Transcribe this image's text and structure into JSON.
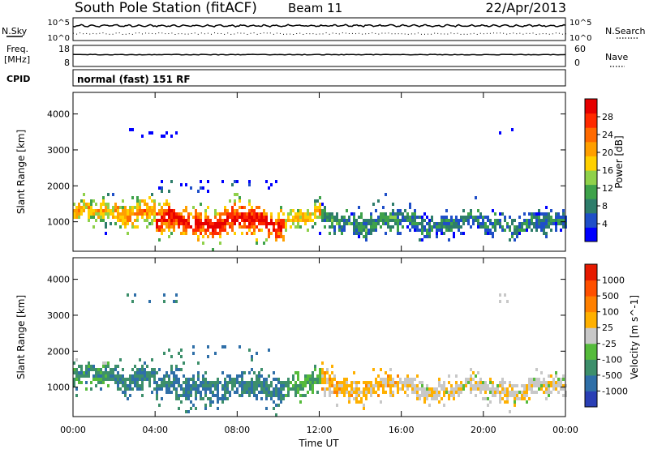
{
  "header": {
    "title": "South Pole Station (fitACF)",
    "beam": "Beam 11",
    "date": "22/Apr/2013",
    "cpid_label": "CPID",
    "mode_text": "normal (fast) 151 RF"
  },
  "small_panels": {
    "nsky_label": "N.Sky",
    "nsearch_label": "N.Search",
    "nsky_ticks": [
      "10^5",
      "10^0"
    ],
    "nsearch_ticks": [
      "10^5",
      "10^0"
    ],
    "freq_label": "Freq.",
    "freq_unit": "[MHz]",
    "freq_ticks": [
      "18",
      "8"
    ],
    "nave_label": "Nave",
    "nave_ticks": [
      "60",
      "0"
    ]
  },
  "chart_data": [
    {
      "type": "heatmap",
      "name": "power",
      "ylabel": "Slant Range [km]",
      "ylim": [
        180,
        4600
      ],
      "yticks": [
        1000,
        2000,
        3000,
        4000
      ],
      "xlim": [
        0,
        24
      ],
      "colorbar": {
        "label": "Power [dB]",
        "ticks": [
          "28",
          "24",
          "20",
          "16",
          "12",
          "8",
          "4"
        ],
        "colors": [
          "#0000ff",
          "#1f4fc8",
          "#2e7d6b",
          "#3ea24a",
          "#8fd14a",
          "#ffd000",
          "#ff9f00",
          "#ff6a00",
          "#ff2a00",
          "#e60000"
        ]
      },
      "bands": [
        {
          "x0": 0.0,
          "x1": 2.0,
          "center": 1200,
          "width": 420,
          "level": 0.55
        },
        {
          "x0": 2.0,
          "x1": 4.0,
          "center": 1250,
          "width": 460,
          "level": 0.62
        },
        {
          "x0": 4.0,
          "x1": 10.3,
          "center": 950,
          "width": 520,
          "level": 0.88
        },
        {
          "x0": 10.3,
          "x1": 12.0,
          "center": 1050,
          "width": 380,
          "level": 0.55
        },
        {
          "x0": 12.0,
          "x1": 16.0,
          "center": 950,
          "width": 420,
          "level": 0.25
        },
        {
          "x0": 16.0,
          "x1": 24.0,
          "center": 900,
          "width": 360,
          "level": 0.2
        }
      ]
    },
    {
      "type": "heatmap",
      "name": "velocity",
      "xlabel": "Time UT",
      "ylabel": "Slant Range [km]",
      "ylim": [
        180,
        4600
      ],
      "yticks": [
        1000,
        2000,
        3000,
        4000
      ],
      "xlim": [
        0,
        24
      ],
      "xticks": [
        "00:00",
        "04:00",
        "08:00",
        "12:00",
        "16:00",
        "20:00",
        "00:00"
      ],
      "colorbar": {
        "label": "Velocity [m s^-1]",
        "ticks": [
          "1000",
          "500",
          "100",
          "25",
          "-25",
          "-100",
          "-500",
          "-1000"
        ],
        "colors": [
          "#2a3fb5",
          "#2f6fa8",
          "#3d8f6b",
          "#55bb3b",
          "#c8c8c8",
          "#ffb000",
          "#ff8000",
          "#ff5000",
          "#e61a00"
        ]
      },
      "bands": [
        {
          "x0": 0.0,
          "x1": 2.0,
          "center": 1200,
          "width": 420,
          "level": -0.35
        },
        {
          "x0": 2.0,
          "x1": 4.0,
          "center": 1250,
          "width": 460,
          "level": -0.4
        },
        {
          "x0": 4.0,
          "x1": 10.3,
          "center": 950,
          "width": 520,
          "level": -0.45
        },
        {
          "x0": 10.3,
          "x1": 12.0,
          "center": 1050,
          "width": 380,
          "level": -0.2
        },
        {
          "x0": 12.0,
          "x1": 16.0,
          "center": 950,
          "width": 420,
          "level": 0.3
        },
        {
          "x0": 16.0,
          "x1": 24.0,
          "center": 900,
          "width": 360,
          "level": 0.15
        }
      ]
    }
  ]
}
